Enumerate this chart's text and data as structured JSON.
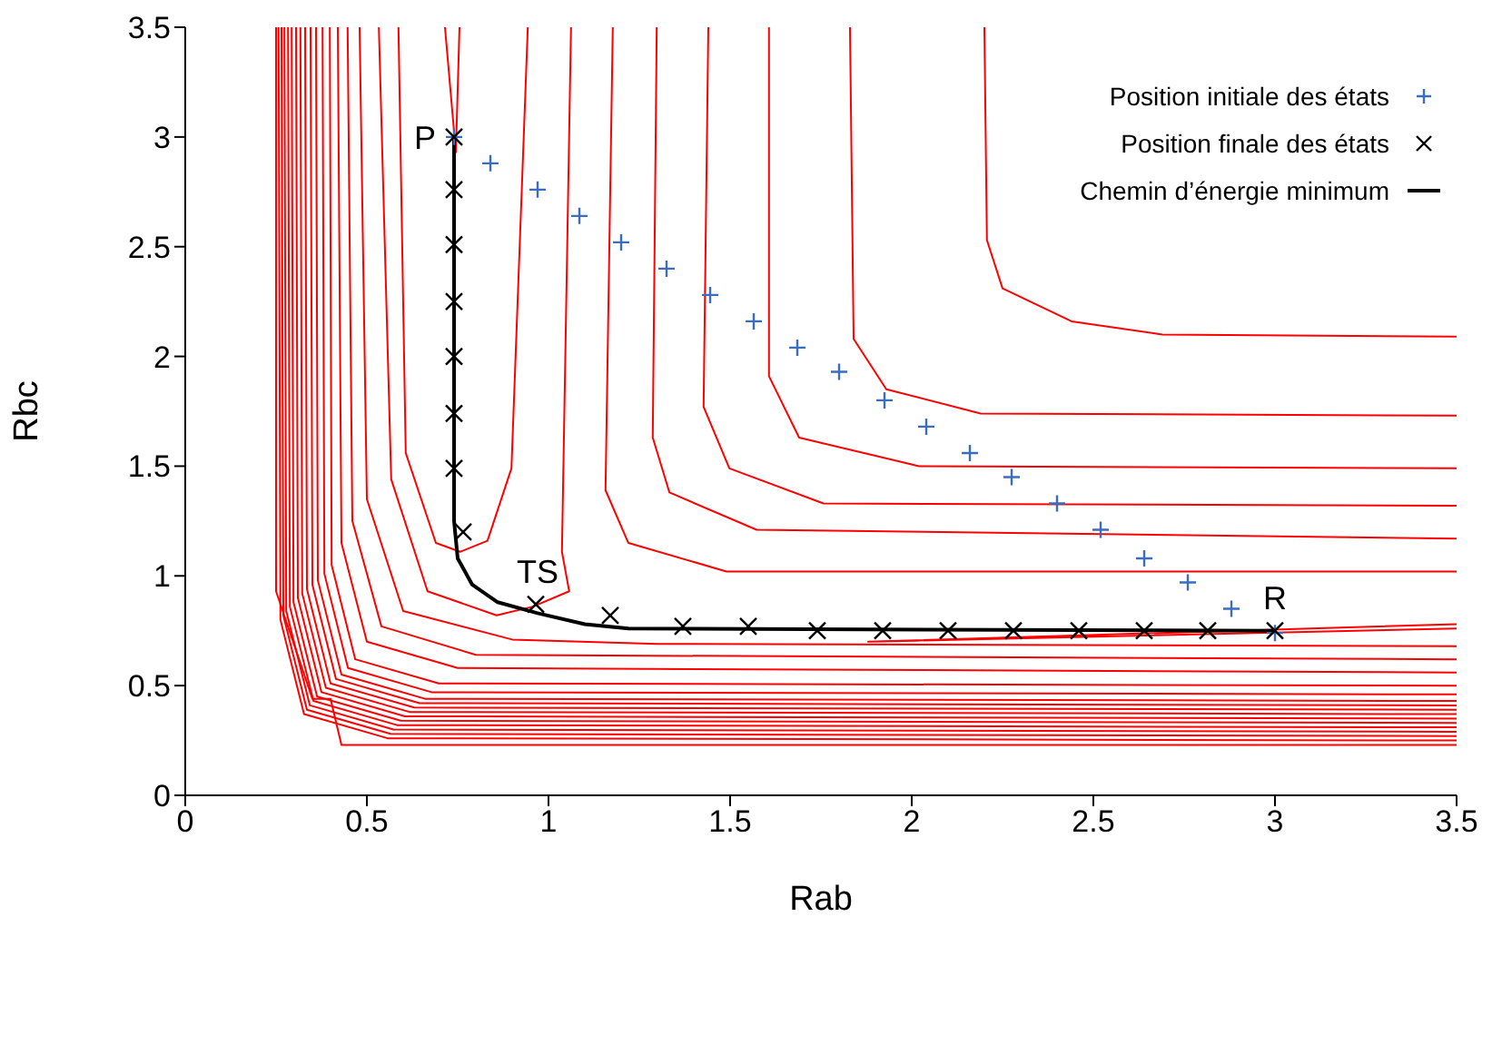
{
  "chart_data": {
    "type": "line",
    "xlabel": "Rab",
    "ylabel": "Rbc",
    "xlim": [
      0,
      3.5
    ],
    "xticks": [
      0,
      0.5,
      1,
      1.5,
      2,
      2.5,
      3,
      3.5
    ],
    "ylim": [
      0,
      3.5
    ],
    "yticks": [
      0,
      0.5,
      1,
      1.5,
      2,
      2.5,
      3,
      3.5
    ],
    "grid": false,
    "legend": "top right",
    "marker": "none",
    "line_style": "solid",
    "annotations": [
      {
        "text": "P",
        "x": 0.74,
        "y": 3.0
      },
      {
        "text": "TS",
        "x": 0.97,
        "y": 0.87
      },
      {
        "text": "R",
        "x": 3.0,
        "y": 0.75
      }
    ],
    "series": [
      {
        "color": "#ff0000",
        "x": [
          0.25,
          0.25,
          0.35,
          0.4,
          0.43,
          3.5
        ],
        "values": [
          3.5,
          0.93,
          0.44,
          0.44,
          0.23,
          0.23
        ]
      },
      {
        "color": "#ff0000",
        "x": [
          0.257,
          0.262,
          0.327,
          0.557,
          3.5
        ],
        "values": [
          3.5,
          0.8,
          0.37,
          0.26,
          0.25
        ]
      },
      {
        "color": "#ff0000",
        "x": [
          0.265,
          0.27,
          0.335,
          0.565,
          3.5
        ],
        "values": [
          3.5,
          0.82,
          0.39,
          0.28,
          0.27
        ]
      },
      {
        "color": "#ff0000",
        "x": [
          0.273,
          0.278,
          0.343,
          0.573,
          3.5
        ],
        "values": [
          3.5,
          0.84,
          0.41,
          0.3,
          0.29
        ]
      },
      {
        "color": "#ff0000",
        "x": [
          0.283,
          0.288,
          0.353,
          0.583,
          3.5
        ],
        "values": [
          3.5,
          0.86,
          0.43,
          0.32,
          0.31
        ]
      },
      {
        "color": "#ff0000",
        "x": [
          0.293,
          0.298,
          0.363,
          0.593,
          3.5
        ],
        "values": [
          3.5,
          0.88,
          0.45,
          0.34,
          0.33
        ]
      },
      {
        "color": "#ff0000",
        "x": [
          0.305,
          0.31,
          0.375,
          0.605,
          3.5
        ],
        "values": [
          3.5,
          0.9,
          0.47,
          0.36,
          0.35
        ]
      },
      {
        "color": "#ff0000",
        "x": [
          0.317,
          0.322,
          0.387,
          0.617,
          3.5
        ],
        "values": [
          3.5,
          0.92,
          0.49,
          0.38,
          0.37
        ]
      },
      {
        "color": "#ff0000",
        "x": [
          0.33,
          0.335,
          0.4,
          0.63,
          3.5
        ],
        "values": [
          3.5,
          0.94,
          0.51,
          0.4,
          0.39
        ]
      },
      {
        "color": "#ff0000",
        "x": [
          0.345,
          0.35,
          0.415,
          0.645,
          3.5
        ],
        "values": [
          3.5,
          0.96,
          0.53,
          0.42,
          0.41
        ]
      },
      {
        "color": "#ff0000",
        "x": [
          0.36,
          0.365,
          0.43,
          0.66,
          3.5
        ],
        "values": [
          3.5,
          0.98,
          0.55,
          0.44,
          0.43
        ]
      },
      {
        "color": "#ff0000",
        "x": [
          0.378,
          0.383,
          0.448,
          0.678,
          3.5
        ],
        "values": [
          3.5,
          1.01,
          0.58,
          0.47,
          0.46
        ]
      },
      {
        "color": "#ff0000",
        "x": [
          0.398,
          0.403,
          0.468,
          0.698,
          3.5
        ],
        "values": [
          3.5,
          1.05,
          0.62,
          0.51,
          0.5
        ]
      },
      {
        "color": "#ff0000",
        "x": [
          0.42,
          0.43,
          0.5,
          0.75,
          3.5
        ],
        "values": [
          3.5,
          1.15,
          0.7,
          0.58,
          0.56
        ]
      },
      {
        "color": "#ff0000",
        "x": [
          0.447,
          0.46,
          0.54,
          0.8,
          3.5
        ],
        "values": [
          3.5,
          1.25,
          0.77,
          0.64,
          0.62
        ]
      },
      {
        "color": "#ff0000",
        "x": [
          0.48,
          0.5,
          0.6,
          0.9,
          1.3,
          3.5
        ],
        "values": [
          3.5,
          1.35,
          0.84,
          0.71,
          0.69,
          0.68
        ]
      },
      {
        "color": "#ff0000",
        "x": [
          3.5,
          1.88,
          3.5
        ],
        "values": [
          0.78,
          0.7,
          0.76
        ]
      },
      {
        "color": "#ff0000",
        "x": [
          0.533,
          0.567,
          0.667,
          0.857,
          0.957,
          1.057,
          1.037,
          1.062
        ],
        "values": [
          3.5,
          1.44,
          0.93,
          0.82,
          0.86,
          0.93,
          1.11,
          3.5
        ]
      },
      {
        "color": "#ff0000",
        "x": [
          0.587,
          0.607,
          0.69,
          0.757,
          0.832,
          0.898,
          0.943
        ],
        "values": [
          3.5,
          1.56,
          1.15,
          1.11,
          1.16,
          1.49,
          3.5
        ]
      },
      {
        "color": "#ff0000",
        "x": [
          0.715,
          0.745,
          0.755
        ],
        "values": [
          3.5,
          2.93,
          3.5
        ]
      },
      {
        "color": "#ff0000",
        "x": [
          1.177,
          1.157,
          1.22,
          1.49,
          3.5
        ],
        "values": [
          3.5,
          1.39,
          1.15,
          1.02,
          1.02
        ]
      },
      {
        "color": "#ff0000",
        "x": [
          1.298,
          1.287,
          1.333,
          1.573,
          3.5
        ],
        "values": [
          3.5,
          1.63,
          1.38,
          1.21,
          1.17
        ]
      },
      {
        "color": "#ff0000",
        "x": [
          1.44,
          1.427,
          1.498,
          1.757,
          3.5
        ],
        "values": [
          3.5,
          1.77,
          1.49,
          1.33,
          1.32
        ]
      },
      {
        "color": "#ff0000",
        "x": [
          1.607,
          1.607,
          1.69,
          2.02,
          3.5
        ],
        "values": [
          3.5,
          1.91,
          1.63,
          1.5,
          1.49
        ]
      },
      {
        "color": "#ff0000",
        "x": [
          1.83,
          1.84,
          1.93,
          2.19,
          3.5
        ],
        "values": [
          3.5,
          2.08,
          1.85,
          1.74,
          1.73
        ]
      },
      {
        "color": "#ff0000",
        "x": [
          2.2,
          2.207,
          2.25,
          2.44,
          2.69,
          3.5
        ],
        "values": [
          3.5,
          2.53,
          2.31,
          2.16,
          2.1,
          2.09
        ]
      },
      {
        "type": "scatter",
        "name": "Position initiale des états",
        "color": "#3a6cbf",
        "marker": "cross",
        "x": [
          0.74,
          0.84,
          0.97,
          1.085,
          1.2,
          1.325,
          1.445,
          1.565,
          1.685,
          1.8,
          1.925,
          2.04,
          2.16,
          2.275,
          2.4,
          2.52,
          2.64,
          2.76,
          2.88,
          3.0
        ],
        "values": [
          3.0,
          2.88,
          2.76,
          2.64,
          2.52,
          2.4,
          2.28,
          2.16,
          2.04,
          1.93,
          1.8,
          1.68,
          1.56,
          1.45,
          1.33,
          1.21,
          1.08,
          0.97,
          0.85,
          0.74
        ]
      },
      {
        "type": "scatter",
        "name": "Position finale des états",
        "color": "#000000",
        "marker": "x",
        "x": [
          0.74,
          0.74,
          0.74,
          0.74,
          0.74,
          0.74,
          0.74,
          0.765,
          0.965,
          1.17,
          1.37,
          1.55,
          1.74,
          1.92,
          2.1,
          2.28,
          2.46,
          2.64,
          2.815,
          3.0
        ],
        "values": [
          3.0,
          2.76,
          2.51,
          2.25,
          2.0,
          1.74,
          1.49,
          1.2,
          0.87,
          0.82,
          0.77,
          0.77,
          0.75,
          0.75,
          0.75,
          0.75,
          0.75,
          0.75,
          0.75,
          0.75
        ]
      },
      {
        "name": "Chemin d’énergie minimum",
        "color": "#000000",
        "x": [
          0.74,
          0.74,
          0.75,
          0.79,
          0.86,
          0.97,
          1.1,
          1.22,
          3.0
        ],
        "values": [
          3.0,
          1.25,
          1.08,
          0.96,
          0.88,
          0.83,
          0.78,
          0.76,
          0.75
        ]
      }
    ]
  }
}
